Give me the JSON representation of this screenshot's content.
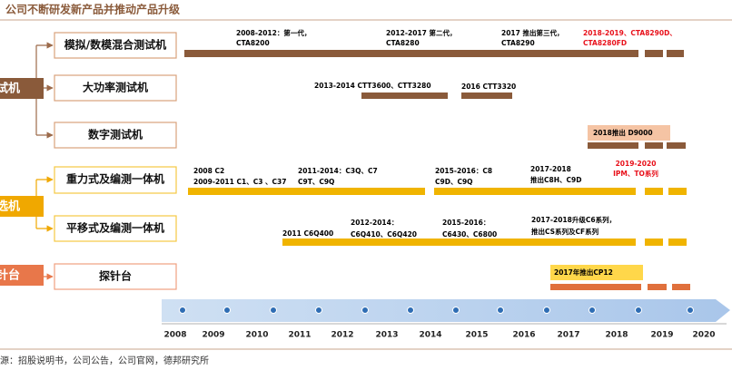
{
  "header": {
    "title": "公司不断研发新产品并推动产品升级"
  },
  "groups": [
    {
      "label": "试机"
    },
    {
      "label": "选机"
    },
    {
      "label": "针台"
    }
  ],
  "products": [
    {
      "name": "模拟/数模混合测试机",
      "notes": [
        [
          "2008-2012：第一代，",
          "CTA8200"
        ],
        [
          "2012-2017 第二代，",
          "CTA8280"
        ],
        [
          "2017 推出第三代，",
          "CTA8290"
        ],
        [
          "2018-2019、CTA8290D、",
          "CTA8280FD"
        ]
      ]
    },
    {
      "name": "大功率测试机",
      "notes": [
        [
          "2013-2014 CTT3600、CTT3280"
        ],
        [
          "2016 CTT3320"
        ]
      ]
    },
    {
      "name": "数字测试机",
      "notes": [
        [
          "2018推出 D9000"
        ]
      ]
    },
    {
      "name": "重力式及编测一体机",
      "notes": [
        [
          "2008 C2",
          "2009-2011 C1、C3 、C37"
        ],
        [
          "2011-2014：C3Q、C7",
          "C9T、C9Q"
        ],
        [
          "2015-2016：C8",
          "C9D、C9Q"
        ],
        [
          "2017-2018",
          "推出C8H、C9D"
        ],
        [
          "2019-2020",
          "IPM、TO系列"
        ]
      ]
    },
    {
      "name": "平移式及编测一体机",
      "notes": [
        [
          "2011 C6Q400"
        ],
        [
          "2012-2014：",
          "C6Q410、C6Q420"
        ],
        [
          "2015-2016：",
          "C6430、C6800"
        ],
        [
          "2017-2018升级C6系列，",
          "推出CS系列及CF系列"
        ]
      ]
    },
    {
      "name": "探针台",
      "notes": [
        [
          "2017年推出CP12"
        ]
      ]
    }
  ],
  "timeline": [
    "2008",
    "2009",
    "2010",
    "2011",
    "2012",
    "2013",
    "2014",
    "2015",
    "2016",
    "2017",
    "2018",
    "2019",
    "2020"
  ],
  "source": "源：招股说明书，公司公告，公司官网，德邦研究所"
}
